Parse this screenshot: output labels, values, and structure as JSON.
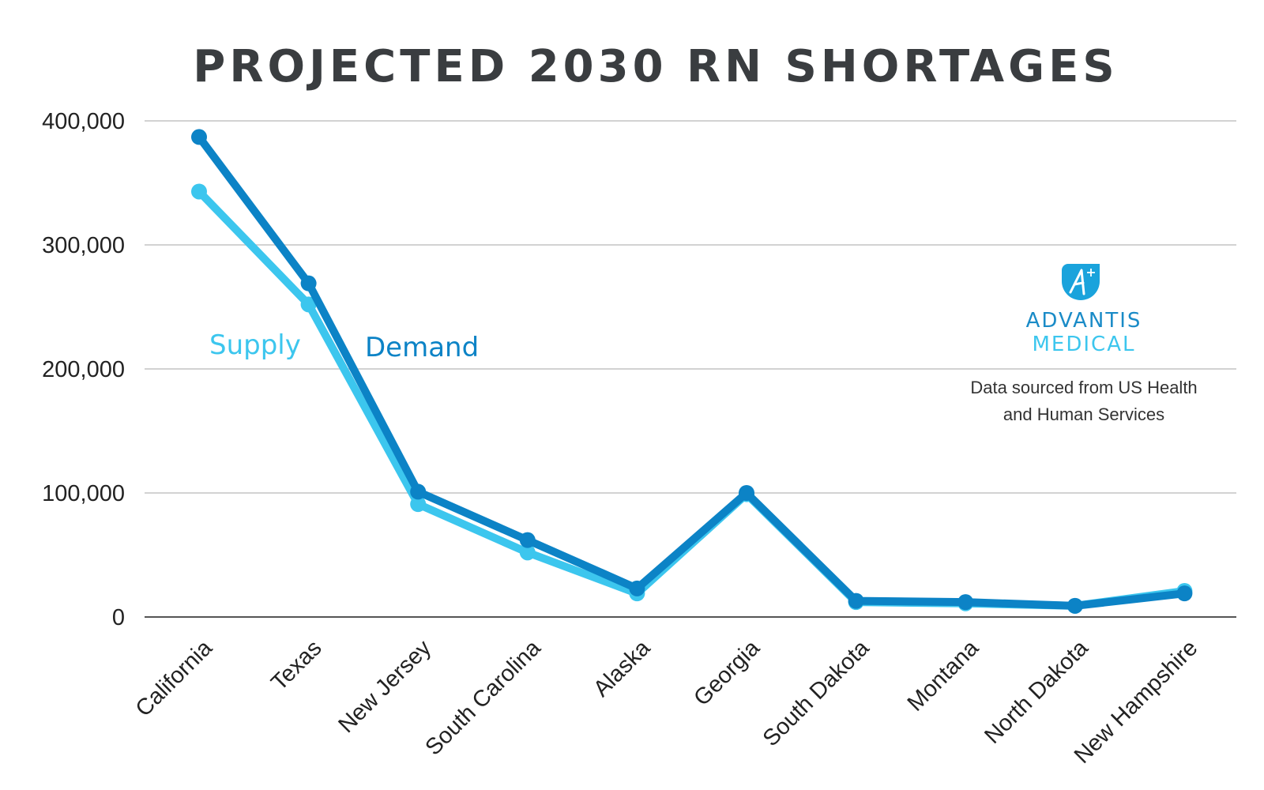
{
  "chart_data": {
    "type": "line",
    "title": "PROJECTED 2030 RN SHORTAGES",
    "xlabel": "",
    "ylabel": "",
    "ylim": [
      0,
      400000
    ],
    "yticks": [
      0,
      100000,
      200000,
      300000,
      400000
    ],
    "ytick_labels": [
      "0",
      "100,000",
      "200,000",
      "300,000",
      "400,000"
    ],
    "grid": true,
    "categories": [
      "California",
      "Texas",
      "New Jersey",
      "South Carolina",
      "Alaska",
      "Georgia",
      "South Dakota",
      "Montana",
      "North Dakota",
      "New Hampshire"
    ],
    "series": [
      {
        "name": "Supply",
        "color": "#3cc6ee",
        "values": [
          343000,
          252000,
          91000,
          52000,
          19000,
          99000,
          12000,
          11000,
          9000,
          21000
        ]
      },
      {
        "name": "Demand",
        "color": "#0c83c6",
        "values": [
          387000,
          269000,
          101000,
          62000,
          23000,
          100000,
          13000,
          12000,
          9000,
          19000
        ]
      }
    ]
  },
  "brand": {
    "line1": "ADVANTIS",
    "line2": "MEDICAL",
    "line1_color": "#1a8bc7",
    "line2_color": "#3cc6ee",
    "logo_icon": "advantis-logo-icon"
  },
  "source": {
    "line1": "Data sourced from US Health",
    "line2": "and Human Services"
  }
}
